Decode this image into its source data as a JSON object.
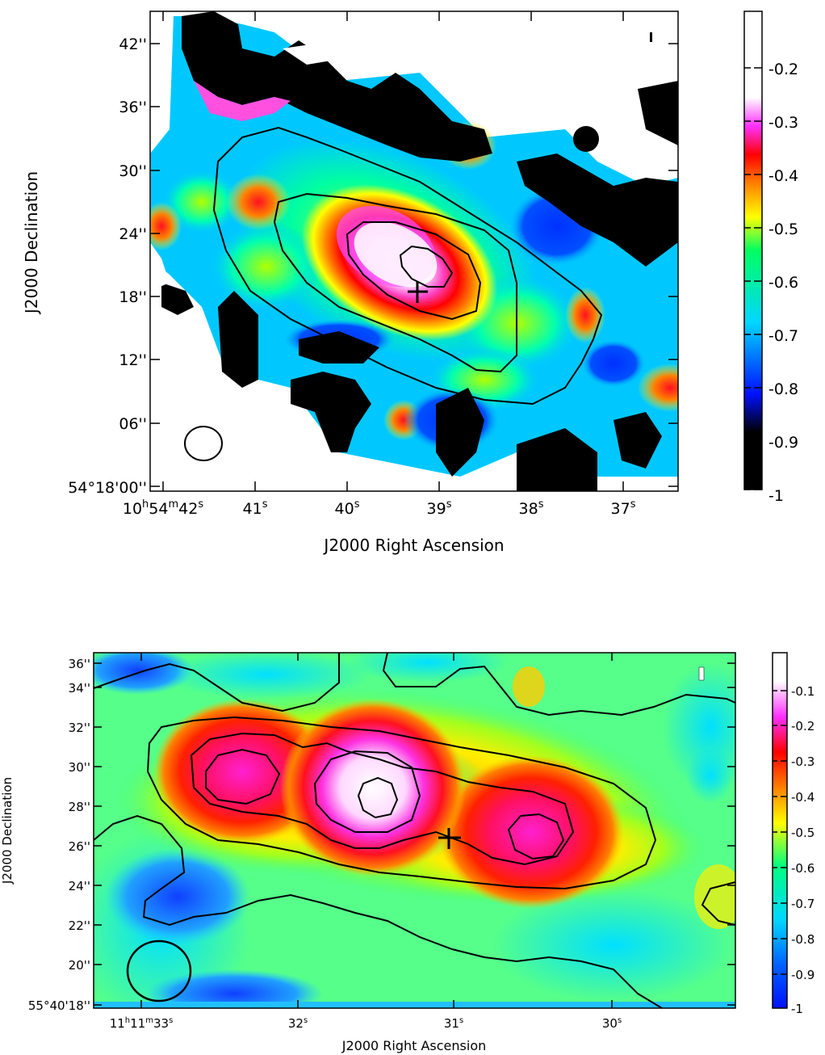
{
  "chart_data": [
    {
      "type": "heatmap",
      "xlabel": "J2000 Right Ascension",
      "ylabel": "J2000 Declination",
      "x_ticks": [
        {
          "label": "10h54m42s",
          "sup_h": "h",
          "sup_m": "m",
          "sup_s": "s",
          "hh": "10",
          "mm": "54",
          "ss": "42",
          "value": 42
        },
        {
          "label": "41s",
          "num": "41",
          "value": 41
        },
        {
          "label": "40s",
          "num": "40",
          "value": 40
        },
        {
          "label": "39s",
          "num": "39",
          "value": 39
        },
        {
          "label": "38s",
          "num": "38",
          "value": 38
        },
        {
          "label": "37s",
          "num": "37",
          "value": 37
        }
      ],
      "y_ticks": [
        {
          "label": "54°18'00''",
          "value": 0
        },
        {
          "label": "06''",
          "value": 6
        },
        {
          "label": "12''",
          "value": 12
        },
        {
          "label": "18''",
          "value": 18
        },
        {
          "label": "24''",
          "value": 24
        },
        {
          "label": "30''",
          "value": 30
        },
        {
          "label": "36''",
          "value": 36
        },
        {
          "label": "42''",
          "value": 42
        }
      ],
      "colorbar": {
        "ticks": [
          "-0.2",
          "-0.3",
          "-0.4",
          "-0.5",
          "-0.6",
          "-0.7",
          "-0.8",
          "-0.9",
          "-1"
        ],
        "range": [
          -1,
          -0.13
        ]
      },
      "peak_ra_s": 39.3,
      "peak_dec_arcsec": 22.5,
      "cross_marker": {
        "ra_s": 39.2,
        "dec_arcsec": 18.5
      },
      "beam": {
        "ra_s": 41.55,
        "dec_arcsec": 4.5
      },
      "color_scale": [
        "#000000",
        "#0010ff",
        "#00d8ff",
        "#ffff00",
        "#ff8000",
        "#ff0000",
        "#ff40ff",
        "#ffffff"
      ]
    },
    {
      "type": "heatmap",
      "xlabel": "J2000 Right Ascension",
      "ylabel": "J2000 Declination",
      "x_ticks": [
        {
          "label": "11h11m33s",
          "hh": "11",
          "mm": "11",
          "ss": "33",
          "value": 33
        },
        {
          "label": "32s",
          "num": "32",
          "value": 32
        },
        {
          "label": "31s",
          "num": "31",
          "value": 31
        },
        {
          "label": "30s",
          "num": "30",
          "value": 30
        }
      ],
      "y_ticks": [
        {
          "label": "55°40'18''",
          "value": 18
        },
        {
          "label": "20''",
          "value": 20
        },
        {
          "label": "22''",
          "value": 22
        },
        {
          "label": "24''",
          "value": 24
        },
        {
          "label": "26''",
          "value": 26
        },
        {
          "label": "28''",
          "value": 28
        },
        {
          "label": "30''",
          "value": 30
        },
        {
          "label": "32''",
          "value": 32
        },
        {
          "label": "34''",
          "value": 34
        },
        {
          "label": "36''",
          "value": 36
        }
      ],
      "colorbar": {
        "ticks": [
          "-0.1",
          "-0.2",
          "-0.3",
          "-0.4",
          "-0.5",
          "-0.6",
          "-0.7",
          "-0.8",
          "-0.9",
          "-1"
        ],
        "range": [
          -1,
          -0.02
        ]
      },
      "cross_marker": {
        "ra_s": 31.0,
        "dec_arcsec": 26.7
      },
      "color_scale": [
        "#0010ff",
        "#00d8ff",
        "#00ff80",
        "#ffff00",
        "#ff8000",
        "#ff0000",
        "#ff40ff",
        "#ffffff"
      ]
    }
  ]
}
